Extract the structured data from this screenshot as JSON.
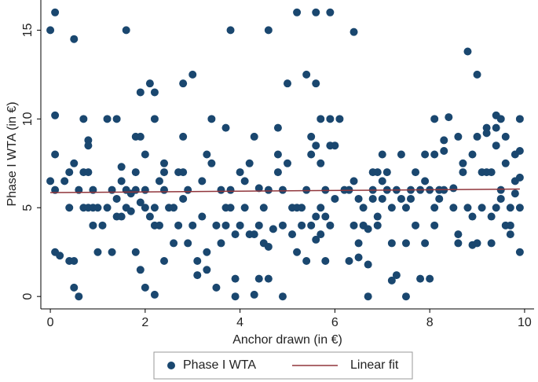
{
  "chart_data": {
    "type": "scatter",
    "x_label": "Anchor drawn (in €)",
    "y_label": "Phase I WTA (in €)",
    "xlim": [
      -0.2,
      10.2
    ],
    "xticks": [
      0,
      2,
      4,
      6,
      8,
      10
    ],
    "ylim": [
      -0.7,
      16.7
    ],
    "yticks": [
      0,
      5,
      10,
      15
    ],
    "legend": "bottom",
    "series": [
      {
        "name": "Phase I WTA",
        "type": "scatter",
        "color": "#1a476f",
        "x": [
          0,
          0.1,
          0,
          0.1,
          0.1,
          0.1,
          0.1,
          0.2,
          0.3,
          0.4,
          0.4,
          0.4,
          0.5,
          0.5,
          0.5,
          0.5,
          0.6,
          0.6,
          0.7,
          0.7,
          0.7,
          0.8,
          0.8,
          0.8,
          0.8,
          0.9,
          0.9,
          0.9,
          1,
          1,
          1.1,
          1.2,
          1.2,
          1.3,
          1.3,
          1.4,
          1.4,
          1.4,
          1.5,
          1.5,
          1.5,
          1.6,
          1.6,
          1.6,
          1.7,
          1.7,
          1.8,
          1.8,
          1.8,
          1.8,
          1.9,
          1.9,
          1.9,
          1.9,
          2,
          2,
          2,
          2,
          2.1,
          2.1,
          2.2,
          2.2,
          2.2,
          2.2,
          2.2,
          2.3,
          2.3,
          2.4,
          2.4,
          2.4,
          2.4,
          2.5,
          2.6,
          2.6,
          2.7,
          2.7,
          2.8,
          2.8,
          2.8,
          2.8,
          2.9,
          2.9,
          3,
          3,
          3.1,
          3.1,
          3.2,
          3.2,
          3.3,
          3.3,
          3.3,
          3.4,
          3.4,
          3.5,
          3.5,
          3.6,
          3.6,
          3.7,
          3.7,
          3.7,
          3.8,
          3.8,
          3.8,
          3.9,
          3.9,
          3.9,
          4,
          4,
          4.1,
          4.1,
          4.2,
          4.2,
          4.3,
          4.3,
          4.3,
          4.4,
          4.4,
          4.4,
          4.5,
          4.5,
          4.6,
          4.6,
          4.6,
          4.6,
          4.7,
          4.8,
          4.8,
          4.8,
          4.9,
          4.9,
          4.9,
          5,
          5,
          5.1,
          5.1,
          5.2,
          5.2,
          5.2,
          5.3,
          5.3,
          5.4,
          5.4,
          5.4,
          5.5,
          5.5,
          5.5,
          5.6,
          5.6,
          5.6,
          5.6,
          5.6,
          5.7,
          5.7,
          5.7,
          5.7,
          5.8,
          5.8,
          5.8,
          5.9,
          5.9,
          5.9,
          5.9,
          6,
          6,
          6.1,
          6.2,
          6.3,
          6.3,
          6.4,
          6.4,
          6.4,
          6.5,
          6.5,
          6.5,
          6.6,
          6.6,
          6.7,
          6.7,
          6.7,
          6.8,
          6.8,
          6.8,
          6.9,
          6.9,
          6.9,
          7,
          7,
          7,
          7.1,
          7.1,
          7.2,
          7.2,
          7.2,
          7.3,
          7.3,
          7.4,
          7.4,
          7.5,
          7.5,
          7.5,
          7.6,
          7.6,
          7.7,
          7.7,
          7.8,
          7.8,
          7.9,
          7.9,
          7.9,
          8,
          8,
          8.1,
          8.1,
          8.1,
          8.1,
          8.2,
          8.2,
          8.3,
          8.3,
          8.3,
          8.4,
          8.5,
          8.5,
          8.6,
          8.6,
          8.6,
          8.7,
          8.7,
          8.8,
          8.8,
          8.9,
          8.9,
          8.9,
          9,
          9,
          9,
          9.1,
          9.1,
          9.2,
          9.2,
          9.2,
          9.3,
          9.3,
          9.3,
          9.4,
          9.4,
          9.4,
          9.4,
          9.5,
          9.5,
          9.5,
          9.6,
          9.6,
          9.6,
          9.7,
          9.7,
          9.7,
          9.8,
          9.8,
          9.8,
          9.9,
          9.9,
          9.9,
          9.9,
          9.9
        ],
        "values": [
          15,
          16,
          6.5,
          10.2,
          8,
          6,
          2.5,
          2.3,
          6.5,
          7,
          5,
          2,
          14.5,
          7.5,
          2,
          0.5,
          0,
          6,
          10,
          7,
          5,
          8.8,
          8.5,
          7,
          5,
          6,
          5,
          4,
          2.5,
          5,
          4,
          5,
          10,
          2.5,
          6,
          10,
          5.5,
          4.5,
          7.3,
          6.5,
          4.5,
          15,
          6,
          5,
          5.8,
          4.8,
          9,
          7,
          2.5,
          6,
          11.5,
          9,
          1.5,
          5.3,
          8,
          6,
          5,
          0.5,
          12,
          4.5,
          11.5,
          10,
          5,
          4,
          0.1,
          6.5,
          4,
          7.5,
          7,
          2,
          6,
          5,
          3,
          5,
          7,
          4,
          12,
          9,
          7,
          5.5,
          6,
          3,
          12.5,
          4,
          1.2,
          2,
          4.5,
          6.5,
          8,
          2.5,
          1.5,
          10,
          7.5,
          4,
          0.5,
          6,
          3,
          9.5,
          5,
          4,
          15,
          5,
          6,
          1,
          0,
          3.5,
          7,
          4,
          6.5,
          5,
          7.5,
          3.5,
          9,
          3.5,
          0.1,
          6.1,
          4,
          1,
          5,
          3,
          15,
          6,
          2.8,
          1,
          3.8,
          9.5,
          8,
          7,
          6,
          4,
          0,
          12,
          7.5,
          5,
          3.5,
          16,
          5,
          2.5,
          5,
          4,
          12.5,
          6,
          2,
          9,
          8,
          4,
          16,
          12,
          8.5,
          4.5,
          3.2,
          10,
          7.5,
          5,
          3.5,
          6,
          4.5,
          2,
          16,
          10,
          8.5,
          4,
          8.5,
          5.5,
          10,
          6,
          2,
          6,
          14.9,
          6.5,
          4,
          5.5,
          3,
          2.2,
          4,
          5,
          1.8,
          0,
          3.8,
          6,
          7,
          5.5,
          4,
          7,
          4.5,
          8,
          6.5,
          5.5,
          6,
          7,
          0.9,
          3,
          5,
          6,
          1.2,
          8,
          5.5,
          3,
          0,
          5,
          6,
          5.5,
          7,
          4,
          1,
          6,
          6.5,
          8,
          3,
          6,
          1,
          10,
          8,
          5,
          4,
          6,
          5.5,
          8.8,
          8.2,
          6,
          10.1,
          6.1,
          5,
          9,
          3.5,
          3,
          7.5,
          7,
          13.8,
          5,
          8,
          4.5,
          2.9,
          12.5,
          9,
          3,
          7,
          5,
          9.5,
          9.2,
          7,
          7,
          4.5,
          3,
          10.2,
          9.5,
          8.5,
          5,
          10,
          6,
          5.5,
          9,
          7.5,
          4,
          5,
          3.5,
          4,
          8,
          6.5,
          5.8,
          10,
          8.2,
          6.7,
          5,
          2.5
        ]
      },
      {
        "name": "Linear fit",
        "type": "line",
        "color": "#90353b",
        "x": [
          0,
          9.9
        ],
        "values": [
          5.85,
          6.05
        ]
      }
    ]
  }
}
